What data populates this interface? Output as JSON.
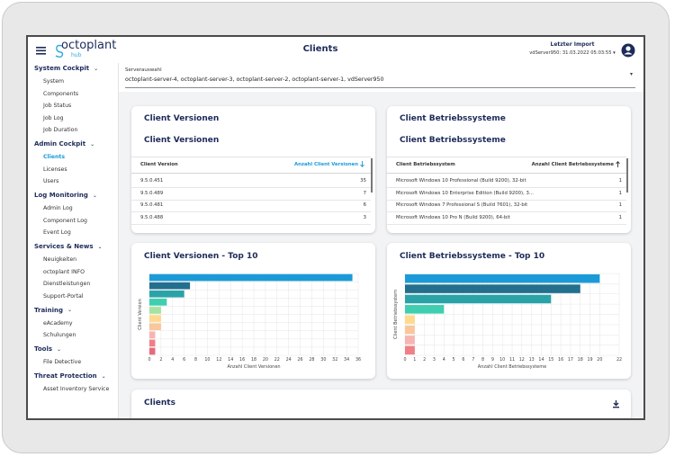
{
  "header": {
    "logo": "octoplant",
    "logo_sub": "hub",
    "title": "Clients",
    "import_label": "Letzter Import",
    "import_value": "vdServer950: 31.03.2022 05:03:55"
  },
  "server_select": {
    "label": "Serverauswahl",
    "value": "octoplant-server-4, octoplant-server-3, octoplant-server-2, octoplant-server-1, vdServer950"
  },
  "sidebar": [
    {
      "label": "System Cockpit",
      "items": [
        {
          "label": "System"
        },
        {
          "label": "Components"
        },
        {
          "label": "Job Status"
        },
        {
          "label": "Job Log"
        },
        {
          "label": "Job Duration"
        }
      ]
    },
    {
      "label": "Admin Cockpit",
      "items": [
        {
          "label": "Clients",
          "active": true
        },
        {
          "label": "Licenses"
        },
        {
          "label": "Users"
        }
      ]
    },
    {
      "label": "Log Monitoring",
      "items": [
        {
          "label": "Admin Log"
        },
        {
          "label": "Component Log"
        },
        {
          "label": "Event Log"
        }
      ]
    },
    {
      "label": "Services & News",
      "items": [
        {
          "label": "Neuigkeiten"
        },
        {
          "label": "octoplant INFO"
        },
        {
          "label": "Dienstleistungen"
        },
        {
          "label": "Support-Portal"
        }
      ]
    },
    {
      "label": "Training",
      "items": [
        {
          "label": "eAcademy"
        },
        {
          "label": "Schulungen"
        }
      ]
    },
    {
      "label": "Tools",
      "items": [
        {
          "label": "File Detective"
        }
      ]
    },
    {
      "label": "Threat Protection",
      "items": [
        {
          "label": "Asset Inventory Service"
        }
      ]
    }
  ],
  "tables": [
    {
      "title": "Client Versionen",
      "subtitle": "Client Versionen",
      "columns": [
        "Client Version",
        "Anzahl Client Versionen"
      ],
      "sort": "desc",
      "rows": [
        [
          "9.5.0.451",
          "35"
        ],
        [
          "9.5.0.489",
          "7"
        ],
        [
          "9.5.0.481",
          "6"
        ],
        [
          "9.5.0.488",
          "3"
        ]
      ]
    },
    {
      "title": "Client Betriebssysteme",
      "subtitle": "Client Betriebssysteme",
      "columns": [
        "Client Betriebssystem",
        "Anzahl Client Betriebssysteme"
      ],
      "sort": "asc",
      "rows": [
        [
          "Microsoft Windows 10 Professional (Build 9200), 32-bit",
          "1"
        ],
        [
          "Microsoft Windows 10 Enterprise Edition (Build 9200), 3...",
          "1"
        ],
        [
          "Microsoft Windows 7 Professional S (Build 7601), 32-bit",
          "1"
        ],
        [
          "Microsoft Windows 10 Pro N (Build 9200), 64-bit",
          "1"
        ]
      ]
    }
  ],
  "charts": [
    {
      "type": "bar",
      "title": "Client Versionen - Top 10",
      "x_label": "Anzahl Client Versionen",
      "y_label": "Client Version",
      "values": [
        35,
        7,
        6,
        3,
        2,
        2,
        2,
        1,
        1,
        1
      ],
      "colors": [
        "#1b9ad8",
        "#236f8e",
        "#2aa3a8",
        "#3fcfb0",
        "#a6e3a1",
        "#ffd98e",
        "#f9c79b",
        "#f7b4b1",
        "#f07f86",
        "#e76a7a"
      ],
      "xlim": [
        0,
        36
      ],
      "xticks": [
        0,
        2,
        4,
        6,
        8,
        10,
        12,
        14,
        16,
        18,
        20,
        22,
        24,
        26,
        28,
        30,
        32,
        34,
        36
      ]
    },
    {
      "type": "bar",
      "title": "Client Betriebssysteme - Top 10",
      "x_label": "Anzahl Client Betriebssysteme",
      "y_label": "Client Betriebssystem",
      "values": [
        20,
        18,
        15,
        4,
        1,
        1,
        1,
        1
      ],
      "colors": [
        "#1b9ad8",
        "#236f8e",
        "#2aa3a8",
        "#3fcfb0",
        "#ffd98e",
        "#f9c79b",
        "#f7b4b1",
        "#f07f86"
      ],
      "xlim": [
        0,
        22
      ],
      "xticks": [
        0,
        1,
        2,
        3,
        4,
        5,
        6,
        7,
        8,
        9,
        10,
        11,
        12,
        13,
        14,
        15,
        16,
        17,
        18,
        19,
        20,
        22
      ]
    }
  ],
  "clients_card": {
    "title": "Clients"
  }
}
